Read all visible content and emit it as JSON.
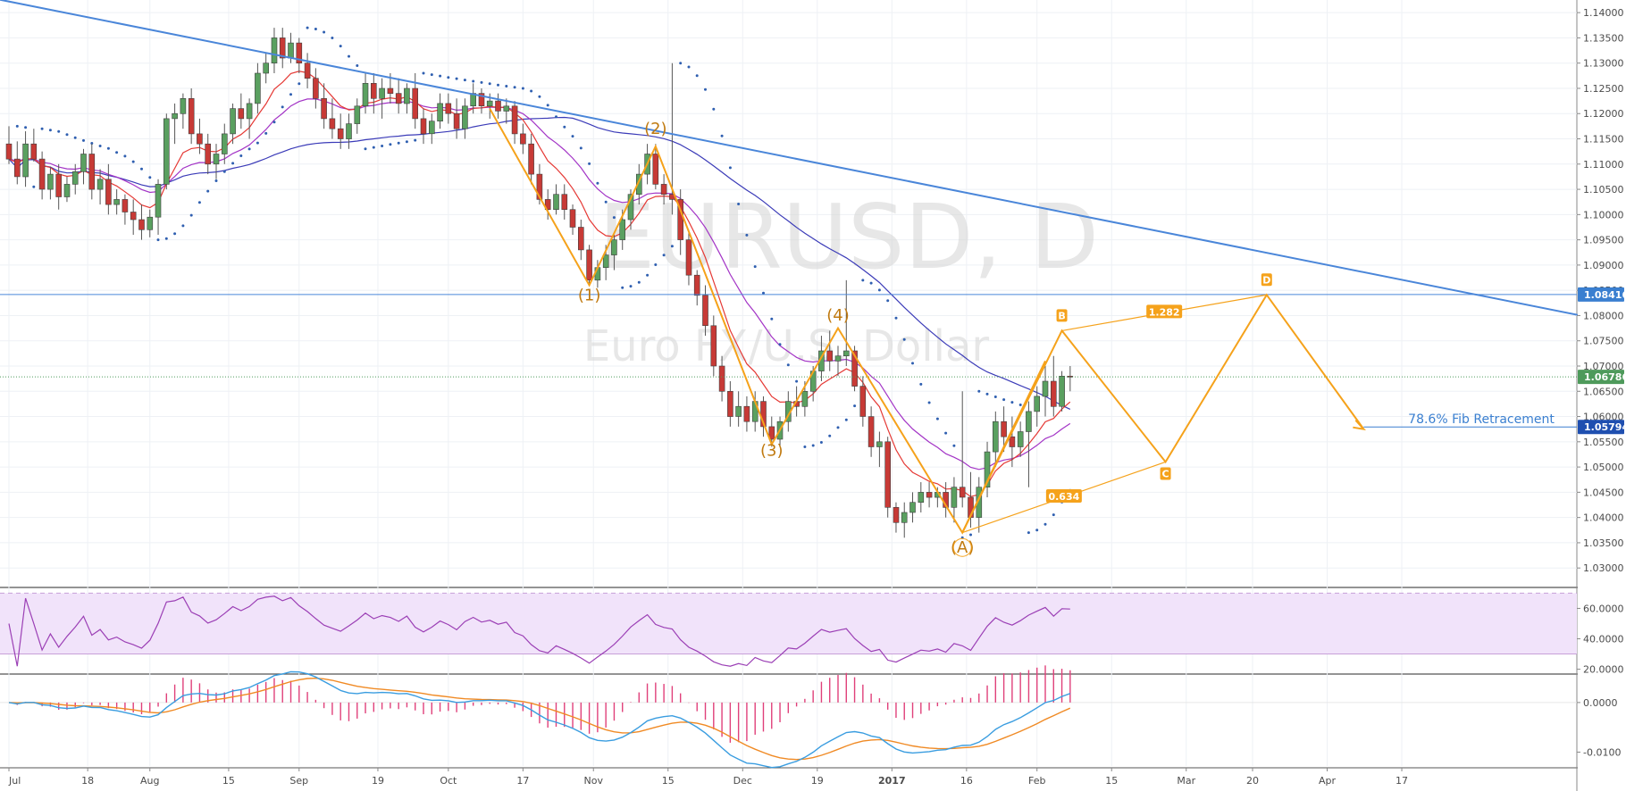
{
  "chart_data": {
    "type": "candlestick",
    "watermark": {
      "symbol": "EURUSD, D",
      "description": "Euro FX/U.S. Dollar"
    },
    "price_axis": {
      "ylim": [
        1.0265,
        1.1425
      ],
      "ticks": [
        "1.14000",
        "1.13500",
        "1.13000",
        "1.12500",
        "1.12000",
        "1.11500",
        "1.11000",
        "1.10500",
        "1.10000",
        "1.09500",
        "1.09000",
        "1.08500",
        "1.08000",
        "1.07500",
        "1.07000",
        "1.06500",
        "1.06000",
        "1.05500",
        "1.05000",
        "1.04500",
        "1.04000",
        "1.03500",
        "1.03000"
      ]
    },
    "time_axis": {
      "labels": [
        "Jul",
        "18",
        "Aug",
        "15",
        "Sep",
        "19",
        "Oct",
        "17",
        "Nov",
        "15",
        "Dec",
        "19",
        "2017",
        "16",
        "Feb",
        "15",
        "Mar",
        "20",
        "Apr",
        "17"
      ],
      "bold_labels": [
        "2017"
      ]
    },
    "candles": [
      [
        1.114,
        1.1175,
        1.11,
        1.111
      ],
      [
        1.111,
        1.1145,
        1.106,
        1.1075
      ],
      [
        1.1075,
        1.1165,
        1.1055,
        1.114
      ],
      [
        1.114,
        1.117,
        1.1105,
        1.111
      ],
      [
        1.111,
        1.1125,
        1.103,
        1.105
      ],
      [
        1.105,
        1.1095,
        1.103,
        1.108
      ],
      [
        1.108,
        1.11,
        1.101,
        1.1035
      ],
      [
        1.1035,
        1.1075,
        1.1025,
        1.106
      ],
      [
        1.106,
        1.11,
        1.104,
        1.1085
      ],
      [
        1.1085,
        1.113,
        1.106,
        1.112
      ],
      [
        1.112,
        1.114,
        1.103,
        1.105
      ],
      [
        1.105,
        1.109,
        1.102,
        1.107
      ],
      [
        1.107,
        1.11,
        1.1,
        1.102
      ],
      [
        1.102,
        1.105,
        1.1,
        1.103
      ],
      [
        1.103,
        1.104,
        1.098,
        1.1005
      ],
      [
        1.1005,
        1.103,
        1.096,
        1.099
      ],
      [
        1.099,
        1.102,
        1.095,
        1.097
      ],
      [
        1.097,
        1.101,
        1.0955,
        1.0995
      ],
      [
        1.0995,
        1.107,
        1.096,
        1.106
      ],
      [
        1.106,
        1.12,
        1.105,
        1.119
      ],
      [
        1.119,
        1.122,
        1.114,
        1.12
      ],
      [
        1.12,
        1.124,
        1.117,
        1.123
      ],
      [
        1.123,
        1.125,
        1.114,
        1.116
      ],
      [
        1.116,
        1.119,
        1.112,
        1.114
      ],
      [
        1.114,
        1.116,
        1.108,
        1.11
      ],
      [
        1.11,
        1.114,
        1.107,
        1.112
      ],
      [
        1.112,
        1.118,
        1.11,
        1.116
      ],
      [
        1.116,
        1.122,
        1.114,
        1.121
      ],
      [
        1.121,
        1.124,
        1.117,
        1.119
      ],
      [
        1.119,
        1.123,
        1.115,
        1.122
      ],
      [
        1.122,
        1.13,
        1.12,
        1.128
      ],
      [
        1.128,
        1.132,
        1.126,
        1.13
      ],
      [
        1.13,
        1.137,
        1.128,
        1.135
      ],
      [
        1.135,
        1.137,
        1.129,
        1.131
      ],
      [
        1.131,
        1.136,
        1.13,
        1.134
      ],
      [
        1.134,
        1.135,
        1.128,
        1.13
      ],
      [
        1.13,
        1.132,
        1.125,
        1.127
      ],
      [
        1.127,
        1.129,
        1.121,
        1.123
      ],
      [
        1.123,
        1.126,
        1.117,
        1.119
      ],
      [
        1.119,
        1.123,
        1.115,
        1.117
      ],
      [
        1.117,
        1.12,
        1.113,
        1.115
      ],
      [
        1.115,
        1.12,
        1.113,
        1.118
      ],
      [
        1.118,
        1.123,
        1.116,
        1.1215
      ],
      [
        1.1215,
        1.128,
        1.12,
        1.126
      ],
      [
        1.126,
        1.128,
        1.12,
        1.123
      ],
      [
        1.123,
        1.127,
        1.119,
        1.125
      ],
      [
        1.125,
        1.128,
        1.122,
        1.124
      ],
      [
        1.124,
        1.127,
        1.12,
        1.122
      ],
      [
        1.122,
        1.126,
        1.12,
        1.125
      ],
      [
        1.125,
        1.128,
        1.117,
        1.119
      ],
      [
        1.119,
        1.121,
        1.114,
        1.116
      ],
      [
        1.116,
        1.12,
        1.114,
        1.1185
      ],
      [
        1.1185,
        1.124,
        1.117,
        1.122
      ],
      [
        1.122,
        1.124,
        1.118,
        1.12
      ],
      [
        1.12,
        1.123,
        1.115,
        1.117
      ],
      [
        1.117,
        1.123,
        1.115,
        1.1215
      ],
      [
        1.1215,
        1.126,
        1.12,
        1.124
      ],
      [
        1.124,
        1.125,
        1.12,
        1.1215
      ],
      [
        1.1215,
        1.124,
        1.119,
        1.1225
      ],
      [
        1.1225,
        1.124,
        1.119,
        1.1205
      ],
      [
        1.1205,
        1.123,
        1.118,
        1.1215
      ],
      [
        1.1215,
        1.1225,
        1.114,
        1.116
      ],
      [
        1.116,
        1.118,
        1.112,
        1.114
      ],
      [
        1.114,
        1.116,
        1.106,
        1.108
      ],
      [
        1.108,
        1.11,
        1.102,
        1.103
      ],
      [
        1.103,
        1.105,
        1.099,
        1.101
      ],
      [
        1.101,
        1.106,
        1.1,
        1.104
      ],
      [
        1.104,
        1.106,
        1.099,
        1.101
      ],
      [
        1.101,
        1.102,
        1.096,
        1.0975
      ],
      [
        1.0975,
        1.099,
        1.091,
        1.093
      ],
      [
        1.093,
        1.094,
        1.086,
        1.087
      ],
      [
        1.087,
        1.091,
        1.0855,
        1.0895
      ],
      [
        1.0895,
        1.094,
        1.087,
        1.092
      ],
      [
        1.092,
        1.096,
        1.089,
        1.095
      ],
      [
        1.095,
        1.101,
        1.093,
        1.099
      ],
      [
        1.099,
        1.105,
        1.097,
        1.104
      ],
      [
        1.104,
        1.11,
        1.102,
        1.108
      ],
      [
        1.108,
        1.114,
        1.106,
        1.112
      ],
      [
        1.112,
        1.114,
        1.105,
        1.106
      ],
      [
        1.106,
        1.108,
        1.102,
        1.104
      ],
      [
        1.104,
        1.13,
        1.1,
        1.103
      ],
      [
        1.103,
        1.105,
        1.092,
        1.095
      ],
      [
        1.095,
        1.097,
        1.086,
        1.088
      ],
      [
        1.088,
        1.089,
        1.082,
        1.084
      ],
      [
        1.084,
        1.086,
        1.076,
        1.078
      ],
      [
        1.078,
        1.08,
        1.068,
        1.07
      ],
      [
        1.07,
        1.072,
        1.063,
        1.065
      ],
      [
        1.065,
        1.067,
        1.058,
        1.06
      ],
      [
        1.06,
        1.065,
        1.058,
        1.062
      ],
      [
        1.062,
        1.064,
        1.057,
        1.059
      ],
      [
        1.059,
        1.065,
        1.057,
        1.063
      ],
      [
        1.063,
        1.064,
        1.056,
        1.058
      ],
      [
        1.058,
        1.06,
        1.054,
        1.0555
      ],
      [
        1.0555,
        1.06,
        1.054,
        1.059
      ],
      [
        1.059,
        1.065,
        1.057,
        1.063
      ],
      [
        1.063,
        1.066,
        1.06,
        1.062
      ],
      [
        1.062,
        1.067,
        1.06,
        1.065
      ],
      [
        1.065,
        1.07,
        1.063,
        1.069
      ],
      [
        1.069,
        1.076,
        1.067,
        1.073
      ],
      [
        1.073,
        1.077,
        1.069,
        1.071
      ],
      [
        1.071,
        1.074,
        1.068,
        1.072
      ],
      [
        1.072,
        1.087,
        1.07,
        1.073
      ],
      [
        1.073,
        1.074,
        1.065,
        1.066
      ],
      [
        1.066,
        1.068,
        1.058,
        1.06
      ],
      [
        1.06,
        1.062,
        1.052,
        1.054
      ],
      [
        1.054,
        1.057,
        1.05,
        1.055
      ],
      [
        1.055,
        1.056,
        1.04,
        1.042
      ],
      [
        1.042,
        1.043,
        1.037,
        1.039
      ],
      [
        1.039,
        1.043,
        1.036,
        1.041
      ],
      [
        1.041,
        1.045,
        1.039,
        1.043
      ],
      [
        1.043,
        1.047,
        1.041,
        1.045
      ],
      [
        1.045,
        1.047,
        1.042,
        1.044
      ],
      [
        1.044,
        1.046,
        1.042,
        1.045
      ],
      [
        1.045,
        1.047,
        1.04,
        1.042
      ],
      [
        1.042,
        1.048,
        1.039,
        1.046
      ],
      [
        1.046,
        1.065,
        1.042,
        1.044
      ],
      [
        1.044,
        1.049,
        1.038,
        1.04
      ],
      [
        1.04,
        1.048,
        1.037,
        1.046
      ],
      [
        1.046,
        1.055,
        1.044,
        1.053
      ],
      [
        1.053,
        1.061,
        1.05,
        1.059
      ],
      [
        1.059,
        1.062,
        1.053,
        1.056
      ],
      [
        1.056,
        1.06,
        1.05,
        1.054
      ],
      [
        1.054,
        1.059,
        1.052,
        1.057
      ],
      [
        1.057,
        1.063,
        1.046,
        1.061
      ],
      [
        1.061,
        1.066,
        1.058,
        1.064
      ],
      [
        1.064,
        1.07,
        1.06,
        1.067
      ],
      [
        1.067,
        1.072,
        1.06,
        1.062
      ],
      [
        1.062,
        1.069,
        1.061,
        1.068
      ],
      [
        1.068,
        1.07,
        1.065,
        1.0678
      ]
    ],
    "overlays": {
      "trendline": {
        "from": {
          "x_index": -7,
          "price": 1.1445
        },
        "to": {
          "x_index": 219.3,
          "price": 1.07025
        },
        "color": "#4a86d9"
      },
      "horizontal_line": {
        "price": 1.08416,
        "color": "#4a86d9"
      },
      "current_price": {
        "value": 1.06786,
        "label": "1.06786",
        "color": "#4e9a5b"
      },
      "fib_label": {
        "text": "78.6% Fib Retracement",
        "price": 1.05794,
        "tag": "1.05794"
      },
      "wave_labels": [
        {
          "text": "(1)",
          "x_index": 70,
          "price": 1.083
        },
        {
          "text": "(2)",
          "x_index": 78,
          "price": 1.116
        },
        {
          "text": "(3)",
          "x_index": 92,
          "price": 1.0522
        },
        {
          "text": "(4)",
          "x_index": 100,
          "price": 1.079
        },
        {
          "text": "(A)",
          "x_index": 115,
          "price": 1.033
        }
      ],
      "harmonic_points": [
        {
          "label": "A",
          "x_index": 115,
          "price": 1.037
        },
        {
          "label": "B",
          "x_index": 127,
          "price": 1.077
        },
        {
          "label": "C",
          "x_index": 139.5,
          "price": 1.051
        },
        {
          "label": "D",
          "x_index": 151.7,
          "price": 1.0841
        }
      ],
      "ratio_labels": [
        "1.282",
        "0.634"
      ],
      "projection_end": {
        "x_index": 163.4,
        "price": 1.0575
      },
      "price_tags": [
        "1.08416",
        "1.06786",
        "1.05794"
      ]
    },
    "rsi": {
      "ylim": [
        18,
        72
      ],
      "band": [
        30,
        70
      ],
      "ticks": [
        "60.0000",
        "40.0000",
        "20.0000"
      ],
      "color": "#9b3fb5"
    },
    "macd": {
      "ylim": [
        -0.0128,
        0.0052
      ],
      "ticks": [
        "0.0000",
        "-0.0100"
      ],
      "macd_color": "#3a9de0",
      "signal_color": "#f08a24",
      "hist_color": "#e0407a"
    },
    "colors": {
      "up": "#5aa060",
      "down": "#c73a36",
      "wick": "#555555",
      "ema_fast": "#e53935",
      "ema_mid": "#a334c6",
      "sma_slow": "#3b3bb8",
      "sar": "#2f5fb0",
      "wave": "#f5a21b",
      "harmonic": "#f5a21b"
    }
  }
}
